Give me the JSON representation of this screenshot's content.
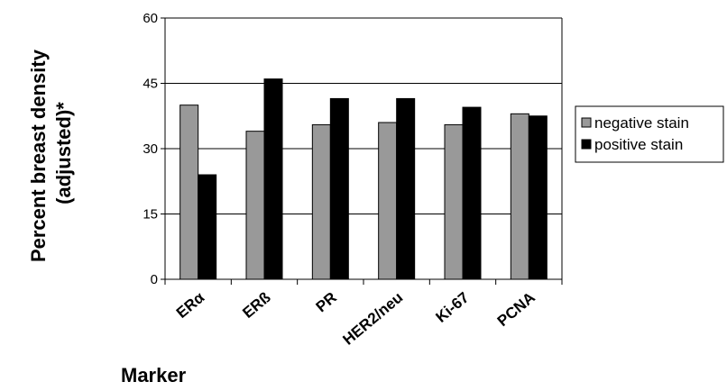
{
  "chart_data": {
    "type": "bar",
    "categories": [
      "ERα",
      "ERß",
      "PR",
      "HER2/neu",
      "Ki-67",
      "PCNA"
    ],
    "series": [
      {
        "name": "negative stain",
        "color": "#999999",
        "values": [
          40,
          34,
          35.5,
          36,
          35.5,
          38
        ]
      },
      {
        "name": "positive stain",
        "color": "#000000",
        "values": [
          24,
          46,
          41.5,
          41.5,
          39.5,
          37.5
        ]
      }
    ],
    "xlabel": "Marker",
    "ylabel": "Percent breast density (adjusted)*",
    "ylabel_lines": [
      "Percent breast density",
      "(adjusted)*"
    ],
    "ylim": [
      0,
      60
    ],
    "yticks": [
      "0",
      "15",
      "30",
      "45",
      "60"
    ],
    "grid": true,
    "legend_position": "right"
  }
}
